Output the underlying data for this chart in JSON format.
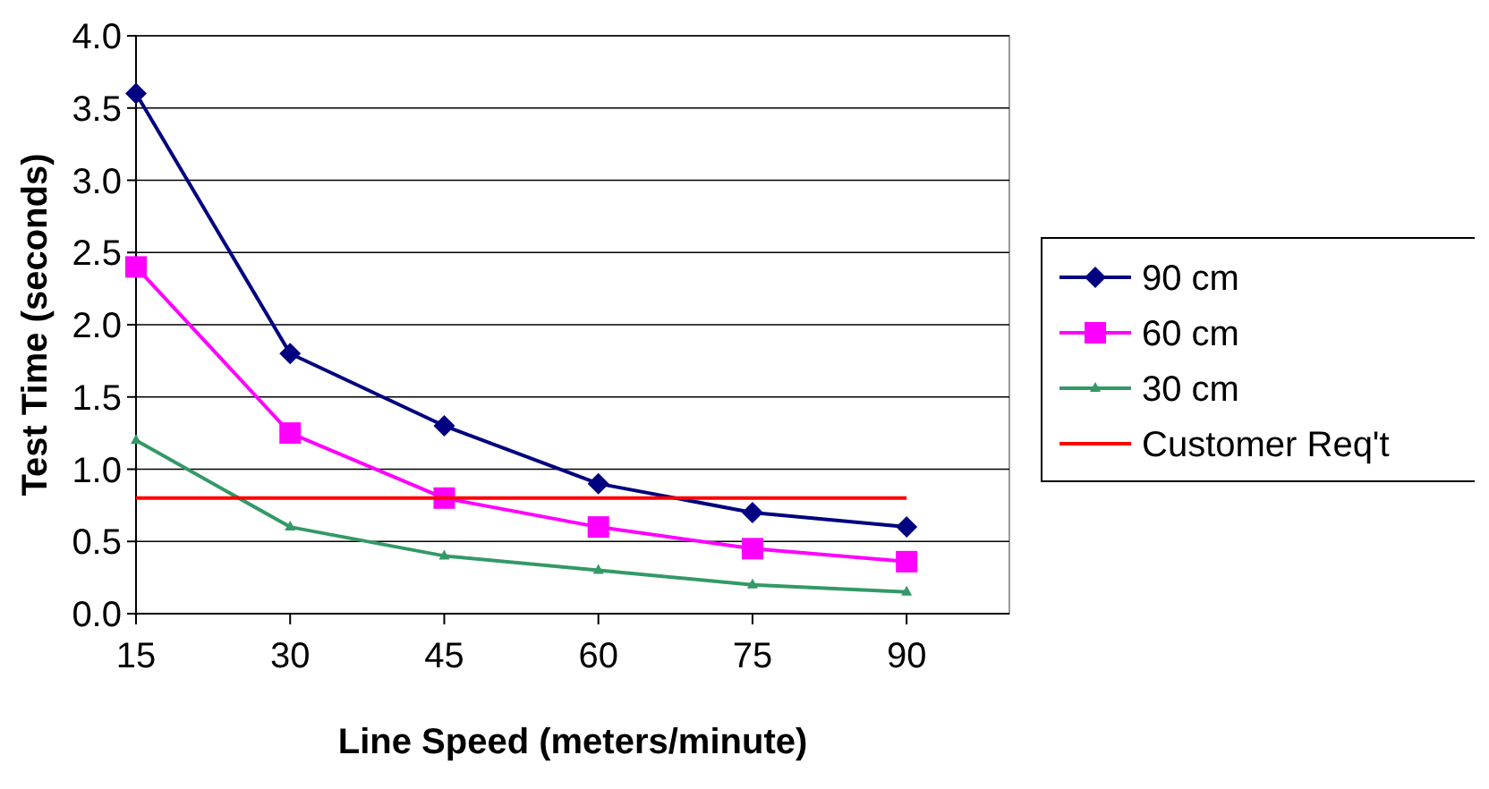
{
  "chart_data": {
    "type": "line",
    "xlabel": "Line Speed (meters/minute)",
    "ylabel": "Test Time (seconds)",
    "x": [
      15,
      30,
      45,
      60,
      75,
      90
    ],
    "xlim": [
      15,
      100
    ],
    "xticks": [
      15,
      30,
      45,
      60,
      75,
      90
    ],
    "ylim": [
      0,
      4
    ],
    "yticks": [
      {
        "value": 0,
        "label": "0.0"
      },
      {
        "value": 0.5,
        "label": "0.5"
      },
      {
        "value": 1,
        "label": "1.0"
      },
      {
        "value": 1.5,
        "label": "1.5"
      },
      {
        "value": 2,
        "label": "2.0"
      },
      {
        "value": 2.5,
        "label": "2.5"
      },
      {
        "value": 3,
        "label": "3.0"
      },
      {
        "value": 3.5,
        "label": "3.5"
      },
      {
        "value": 4,
        "label": "4.0"
      }
    ],
    "grid": "y",
    "legend": "right",
    "series": [
      {
        "name": "90 cm",
        "color": "#000080",
        "marker": "diamond",
        "values": [
          3.6,
          1.8,
          1.3,
          0.9,
          0.7,
          0.6
        ]
      },
      {
        "name": "60 cm",
        "color": "#ff00ff",
        "marker": "square",
        "values": [
          2.4,
          1.25,
          0.8,
          0.6,
          0.45,
          0.36
        ]
      },
      {
        "name": "30 cm",
        "color": "#339966",
        "marker": "triangle",
        "values": [
          1.2,
          0.6,
          0.4,
          0.3,
          0.2,
          0.15
        ]
      },
      {
        "name": "Customer Req't",
        "color": "#ff0000",
        "marker": "none",
        "values": [
          0.8,
          0.8,
          0.8,
          0.8,
          0.8,
          0.8
        ]
      }
    ]
  }
}
